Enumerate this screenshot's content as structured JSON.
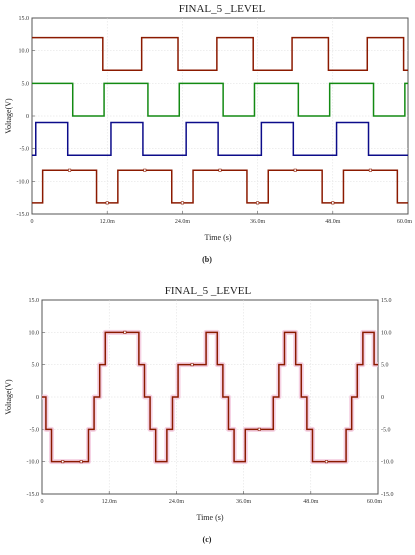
{
  "captions": {
    "top": "(b)",
    "bottom": "(c)"
  },
  "chart_data": [
    {
      "type": "line",
      "title": "FINAL_5 _LEVEL",
      "xlabel": "Time (s)",
      "ylabel": "Voltage(V)",
      "xlim": [
        0,
        60
      ],
      "ylim": [
        -15,
        15
      ],
      "xticks": [
        0,
        12,
        24,
        36,
        48,
        60
      ],
      "xtick_labels": [
        "0",
        "12.0m",
        "24.0m",
        "36.0m",
        "48.0m",
        "60.0m"
      ],
      "yticks": [
        15,
        10,
        5,
        0,
        -5,
        -10,
        -15
      ],
      "ytick_labels": [
        "15.0",
        "10.0",
        "5.0",
        "0",
        "-5.0",
        "-10.0",
        "-15.0"
      ],
      "grid": true,
      "legend": "none",
      "series": [
        {
          "color": "#8b1a00",
          "step": true,
          "x": [
            0,
            11.3,
            11.3,
            17.5,
            17.5,
            23.3,
            23.3,
            29.5,
            29.5,
            35.3,
            35.3,
            41.5,
            41.5,
            47.3,
            47.3,
            53.5,
            53.5,
            59.3,
            59.3,
            60
          ],
          "values": [
            12,
            12,
            7,
            7,
            12,
            12,
            7,
            7,
            12,
            12,
            7,
            7,
            12,
            12,
            7,
            7,
            12,
            12,
            7,
            7
          ]
        },
        {
          "color": "#138a13",
          "step": true,
          "x": [
            0,
            6.5,
            6.5,
            11.5,
            11.5,
            18.5,
            18.5,
            23.5,
            23.5,
            30.5,
            30.5,
            35.5,
            35.5,
            42.5,
            42.5,
            47.5,
            47.5,
            54.5,
            54.5,
            59.5,
            59.5,
            60
          ],
          "values": [
            5,
            5,
            0,
            0,
            5,
            5,
            0,
            0,
            5,
            5,
            0,
            0,
            5,
            5,
            0,
            0,
            5,
            5,
            0,
            0,
            5,
            5
          ]
        },
        {
          "color": "#0c0c8a",
          "step": true,
          "x": [
            0,
            0.6,
            0.6,
            5.7,
            5.7,
            12.6,
            12.6,
            17.7,
            17.7,
            24.6,
            24.6,
            29.7,
            29.7,
            36.6,
            36.6,
            41.7,
            41.7,
            48.6,
            48.6,
            53.7,
            53.7,
            60
          ],
          "values": [
            -6,
            -6,
            -1,
            -1,
            -6,
            -6,
            -1,
            -1,
            -6,
            -6,
            -1,
            -1,
            -6,
            -6,
            -1,
            -1,
            -6,
            -6,
            -1,
            -1,
            -6,
            -6
          ]
        },
        {
          "color": "#8b1a00",
          "step": true,
          "markers": true,
          "x": [
            0,
            1.7,
            1.7,
            10.3,
            10.3,
            13.7,
            13.7,
            22.3,
            22.3,
            25.7,
            25.7,
            34.3,
            34.3,
            37.7,
            37.7,
            46.3,
            46.3,
            49.7,
            49.7,
            58.3,
            58.3,
            60
          ],
          "values": [
            -13.3,
            -13.3,
            -8.3,
            -8.3,
            -13.3,
            -13.3,
            -8.3,
            -8.3,
            -13.3,
            -13.3,
            -8.3,
            -8.3,
            -13.3,
            -13.3,
            -8.3,
            -8.3,
            -13.3,
            -13.3,
            -8.3,
            -8.3,
            -13.3,
            -13.3
          ]
        }
      ]
    },
    {
      "type": "line",
      "title": "FINAL_5 _LEVEL",
      "xlabel": "Time (s)",
      "ylabel": "Voltage(V)",
      "xlim": [
        0,
        60
      ],
      "ylim": [
        -15,
        15
      ],
      "xticks": [
        0,
        12,
        24,
        36,
        48,
        60
      ],
      "xtick_labels": [
        "0",
        "12.0m",
        "24.0m",
        "36.0m",
        "48.0m",
        "60.0m"
      ],
      "yticks": [
        15,
        10,
        5,
        0,
        -5,
        -10,
        -15
      ],
      "ytick_labels": [
        "15.0",
        "10.0",
        "5.0",
        "0",
        "-5.0",
        "-10.0",
        "-15.0"
      ],
      "right_axis": true,
      "grid": true,
      "legend": "none",
      "series": [
        {
          "color": "#8b1a00",
          "step": true,
          "markers": true,
          "halo": "#f2c6dc",
          "x": [
            0,
            0.7,
            0.7,
            1.7,
            1.7,
            5.7,
            5.7,
            8.3,
            8.3,
            9.3,
            9.3,
            10.3,
            10.3,
            11.3,
            11.3,
            12.3,
            12.3,
            17.3,
            17.3,
            18.3,
            18.3,
            19.3,
            19.3,
            20.3,
            20.3,
            21.3,
            21.3,
            22.3,
            22.3,
            23.3,
            23.3,
            24.3,
            24.3,
            29.3,
            29.3,
            30.3,
            30.3,
            31.3,
            31.3,
            32.3,
            32.3,
            33.3,
            33.3,
            34.3,
            34.3,
            35.3,
            35.3,
            36.3,
            36.3,
            41.3,
            41.3,
            42.3,
            42.3,
            43.3,
            43.3,
            44.3,
            44.3,
            45.3,
            45.3,
            46.3,
            46.3,
            47.3,
            47.3,
            48.3,
            48.3,
            53.3,
            53.3,
            54.3,
            54.3,
            55.3,
            55.3,
            56.3,
            56.3,
            57.3,
            57.3,
            58.3,
            58.3,
            59.3,
            59.3,
            60
          ],
          "values": [
            0,
            0,
            -5,
            -5,
            -10,
            -10,
            -10,
            -10,
            -5,
            -5,
            0,
            0,
            5,
            5,
            10,
            10,
            10,
            10,
            5,
            5,
            0,
            0,
            -5,
            -5,
            -10,
            -10,
            -10,
            -10,
            -5,
            -5,
            0,
            0,
            5,
            5,
            10,
            10,
            10,
            10,
            5,
            5,
            0,
            0,
            -5,
            -5,
            -10,
            -10,
            -10,
            -10,
            -5,
            -5,
            0,
            0,
            5,
            5,
            10,
            10,
            10,
            10,
            5,
            5,
            0,
            0,
            -5,
            -5,
            -10,
            -10,
            -10,
            -10,
            -5,
            -5,
            0,
            0,
            5,
            5,
            10,
            10,
            10,
            10,
            5,
            5
          ]
        }
      ]
    }
  ]
}
